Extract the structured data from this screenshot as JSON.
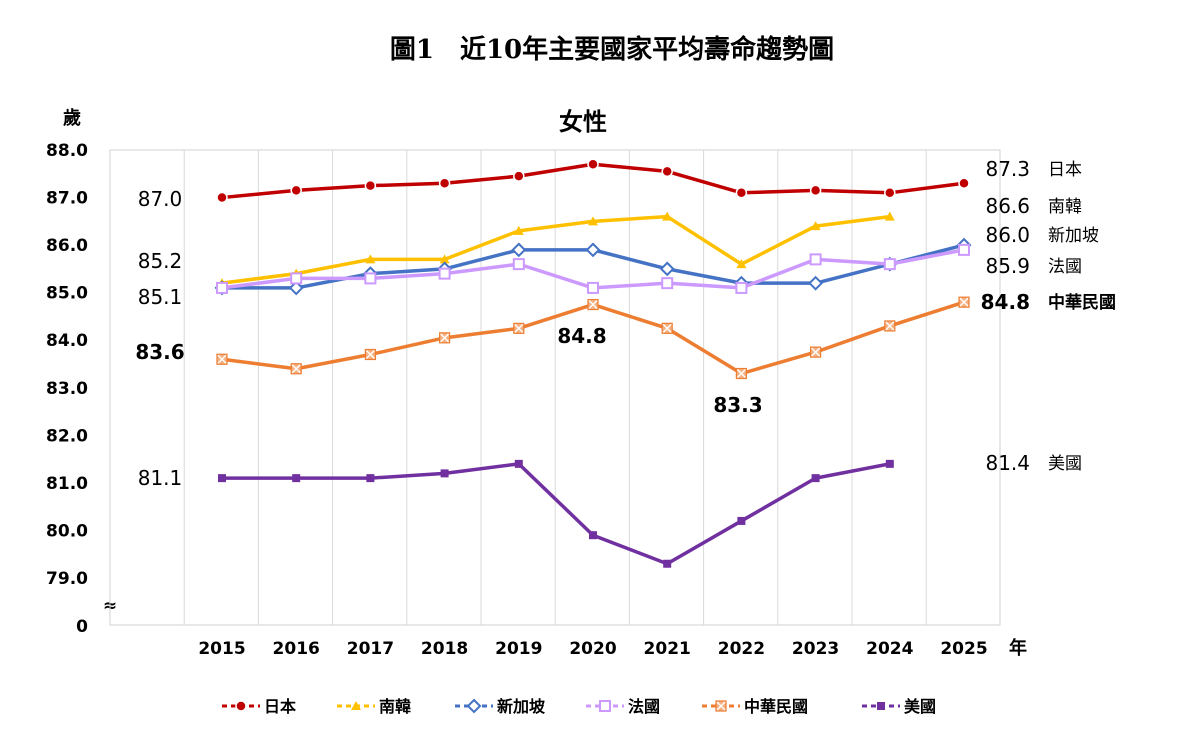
{
  "figure_title": "圖1　近10年主要國家平均壽命趨勢圖",
  "chart_data": {
    "type": "line",
    "title": "女性",
    "ylabel": "歲",
    "xlabel": "年",
    "ylim": [
      79,
      88
    ],
    "y_ticks": [
      "88.0",
      "87.0",
      "86.0",
      "85.0",
      "84.0",
      "83.0",
      "82.0",
      "81.0",
      "80.0",
      "79.0"
    ],
    "y_break_label": "0",
    "y_break_symbol": "≈",
    "categories": [
      "2015",
      "2016",
      "2017",
      "2018",
      "2019",
      "2020",
      "2021",
      "2022",
      "2023",
      "2024",
      "2025"
    ],
    "grid": "vertical",
    "legend_position": "bottom",
    "series": [
      {
        "name": "日本",
        "color": "#C00000",
        "marker": "circle",
        "values": [
          87.0,
          87.15,
          87.25,
          87.3,
          87.45,
          87.7,
          87.55,
          87.1,
          87.15,
          87.1,
          87.3
        ]
      },
      {
        "name": "南韓",
        "color": "#FFC000",
        "marker": "triangle",
        "values": [
          85.2,
          85.4,
          85.7,
          85.7,
          86.3,
          86.5,
          86.6,
          85.6,
          86.4,
          86.6,
          null
        ]
      },
      {
        "name": "新加坡",
        "color": "#4472C4",
        "marker": "diamond",
        "values": [
          85.1,
          85.1,
          85.4,
          85.5,
          85.9,
          85.9,
          85.5,
          85.2,
          85.2,
          85.6,
          86.0
        ]
      },
      {
        "name": "法國",
        "color": "#CC99FF",
        "marker": "square",
        "values": [
          85.1,
          85.3,
          85.3,
          85.4,
          85.6,
          85.1,
          85.2,
          85.1,
          85.7,
          85.6,
          85.9
        ]
      },
      {
        "name": "中華民國",
        "color": "#ED7D31",
        "marker": "asterisk",
        "values": [
          83.6,
          83.4,
          83.7,
          84.05,
          84.25,
          84.75,
          84.25,
          83.3,
          83.75,
          84.3,
          84.8
        ]
      },
      {
        "name": "美國",
        "color": "#7030A0",
        "marker": "square",
        "values": [
          81.1,
          81.1,
          81.1,
          81.2,
          81.4,
          79.9,
          79.3,
          80.2,
          81.1,
          81.4,
          null
        ]
      }
    ],
    "annotations": [
      {
        "text": "87.0",
        "bold": false
      },
      {
        "text": "85.2",
        "bold": false
      },
      {
        "text": "85.1",
        "bold": false
      },
      {
        "text": "83.6",
        "bold": true
      },
      {
        "text": "81.1",
        "bold": false
      },
      {
        "text": "84.8",
        "bold": true
      },
      {
        "text": "83.3",
        "bold": true
      }
    ],
    "end_labels": [
      {
        "value": "87.3",
        "name": "日本",
        "bold": false
      },
      {
        "value": "86.6",
        "name": "南韓",
        "bold": false
      },
      {
        "value": "86.0",
        "name": "新加坡",
        "bold": false
      },
      {
        "value": "85.9",
        "name": "法國",
        "bold": false
      },
      {
        "value": "84.8",
        "name": "中華民國",
        "bold": true
      },
      {
        "value": "81.4",
        "name": "美國",
        "bold": false
      }
    ]
  }
}
